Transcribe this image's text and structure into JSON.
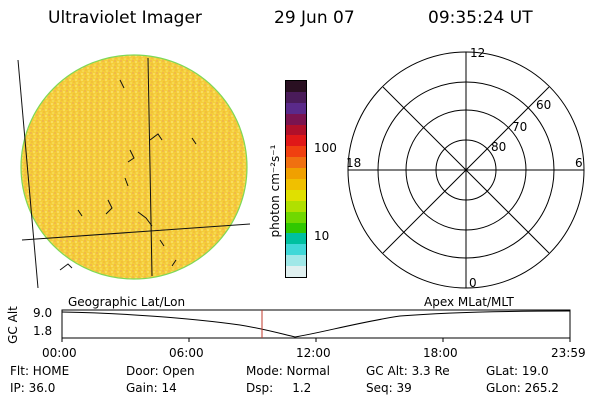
{
  "header": {
    "title": "Ultraviolet Imager",
    "date": "29 Jun 07",
    "time": "09:35:24 UT"
  },
  "colorbar": {
    "label": "photon cm⁻²s⁻¹",
    "ticks": [
      "100",
      "10"
    ],
    "colors": [
      "#2a1022",
      "#4a1c5a",
      "#5a2a8a",
      "#7a1450",
      "#b0102a",
      "#e01818",
      "#f04010",
      "#f07010",
      "#f0a000",
      "#f0c000",
      "#e0e000",
      "#b0e000",
      "#70d800",
      "#30c800",
      "#00c0a0",
      "#40d8d8",
      "#a0e8e8",
      "#e0f0f0"
    ]
  },
  "polar": {
    "lat_labels": [
      "60",
      "70",
      "80"
    ],
    "mlt_labels": [
      "12",
      "18",
      "6",
      "0"
    ]
  },
  "timeline": {
    "left_label": "Geographic Lat/Lon",
    "right_label": "Apex MLat/MLT",
    "axis_label": "GC Alt",
    "y_ticks": [
      "9.0",
      "1.8"
    ],
    "x_ticks": [
      "00:00",
      "06:00",
      "12:00",
      "18:00",
      "23:59"
    ]
  },
  "info": {
    "row1": [
      "Flt: HOME",
      "Door: Open",
      "Mode: Normal",
      "GC Alt: 3.3 Re",
      "GLat: 19.0"
    ],
    "row2": [
      "IP: 36.0",
      "Gain: 14",
      "Dsp:     1.2",
      "Seq: 39",
      "GLon: 265.2"
    ]
  },
  "colors": {
    "disk_fill": "#f5cd3a",
    "disk_edge": "#7ed957",
    "time_marker": "#c0392b"
  }
}
